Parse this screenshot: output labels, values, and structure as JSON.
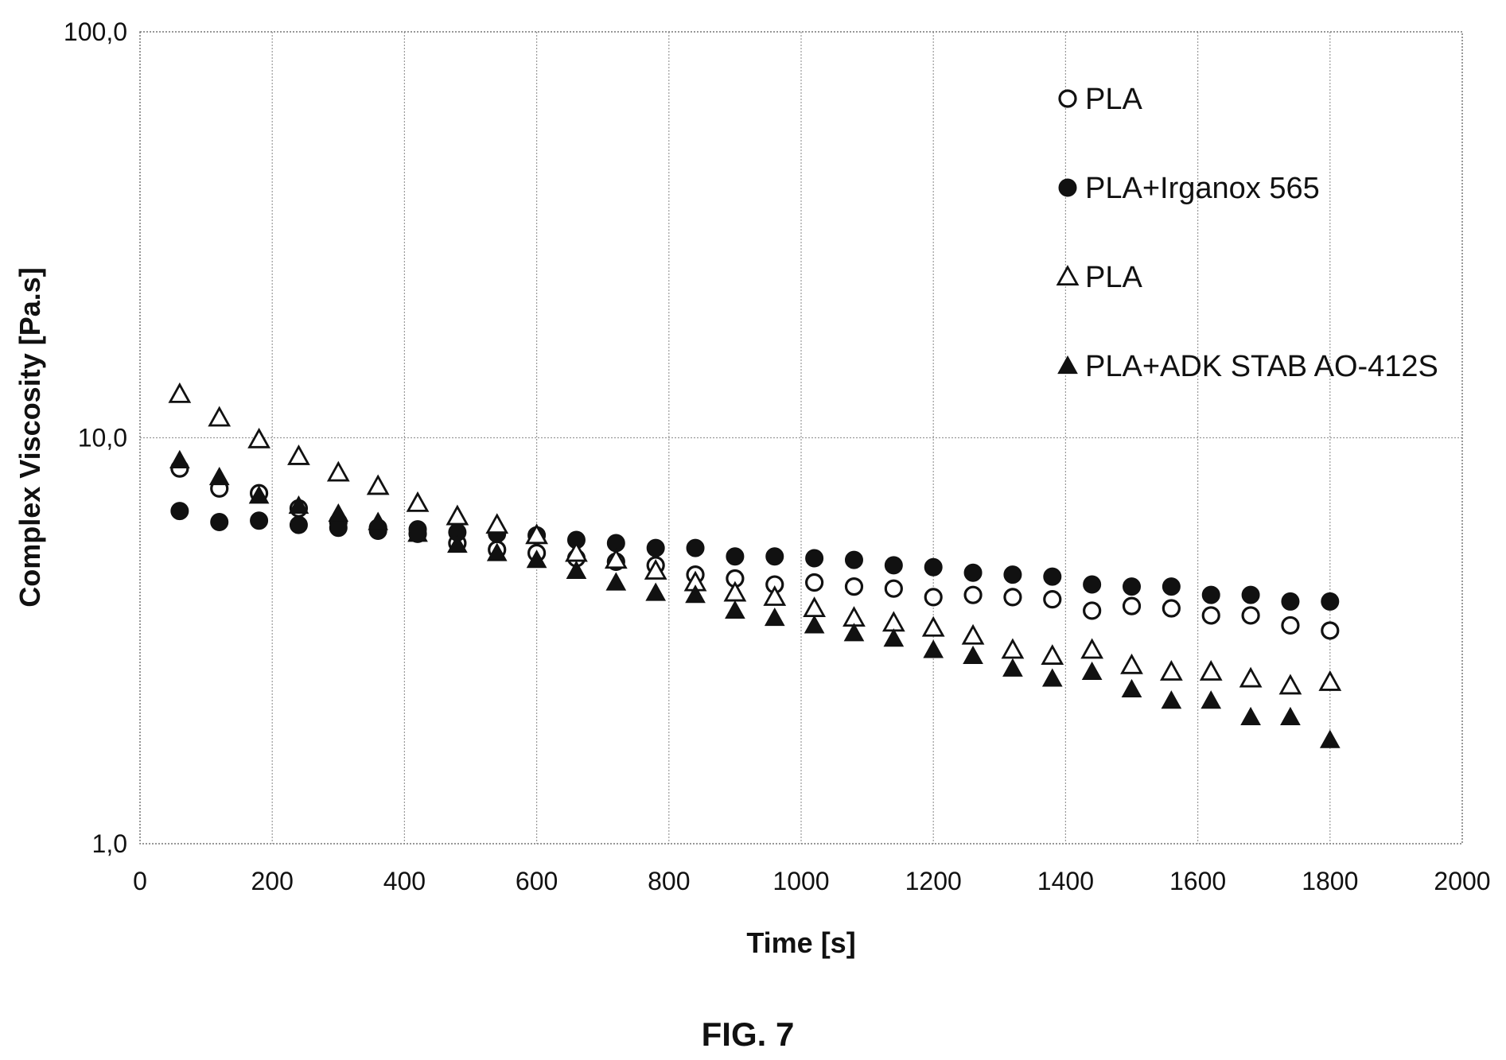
{
  "figure_label": "FIG. 7",
  "chart_data": {
    "type": "scatter",
    "xlabel": "Time [s]",
    "ylabel": "Complex Viscosity [Pa.s]",
    "xlim": [
      0,
      2000
    ],
    "ylim": [
      1.0,
      100.0
    ],
    "y_scale": "log",
    "x_ticks": [
      0,
      200,
      400,
      600,
      800,
      1000,
      1200,
      1400,
      1600,
      1800,
      2000
    ],
    "x_tick_labels": [
      "0",
      "200",
      "400",
      "600",
      "800",
      "1000",
      "1200",
      "1400",
      "1600",
      "1800",
      "2000"
    ],
    "y_ticks": [
      1,
      10,
      100
    ],
    "y_tick_labels": [
      "1,0",
      "10,0",
      "100,0"
    ],
    "grid": true,
    "legend_position": "top-right",
    "x": [
      60,
      120,
      180,
      240,
      300,
      360,
      420,
      480,
      540,
      600,
      660,
      720,
      780,
      840,
      900,
      960,
      1020,
      1080,
      1140,
      1200,
      1260,
      1320,
      1380,
      1440,
      1500,
      1560,
      1620,
      1680,
      1740,
      1800
    ],
    "series": [
      {
        "name": "PLA",
        "marker": "open-circle",
        "values": [
          8.4,
          7.5,
          7.3,
          6.7,
          6.2,
          6.0,
          5.8,
          5.5,
          5.3,
          5.2,
          5.05,
          4.95,
          4.85,
          4.6,
          4.5,
          4.35,
          4.4,
          4.3,
          4.25,
          4.05,
          4.1,
          4.05,
          4.0,
          3.75,
          3.85,
          3.8,
          3.65,
          3.65,
          3.45,
          3.35
        ]
      },
      {
        "name": "PLA+Irganox 565",
        "marker": "filled-circle",
        "values": [
          6.6,
          6.2,
          6.25,
          6.1,
          6.0,
          5.9,
          5.95,
          5.85,
          5.8,
          5.75,
          5.6,
          5.5,
          5.35,
          5.35,
          5.1,
          5.1,
          5.05,
          5.0,
          4.85,
          4.8,
          4.65,
          4.6,
          4.55,
          4.35,
          4.3,
          4.3,
          4.1,
          4.1,
          3.95,
          3.95
        ]
      },
      {
        "name": "PLA",
        "marker": "open-triangle",
        "values": [
          12.8,
          11.2,
          9.9,
          9.0,
          8.2,
          7.6,
          6.9,
          6.4,
          6.1,
          5.75,
          5.2,
          5.0,
          4.7,
          4.4,
          4.15,
          4.05,
          3.8,
          3.6,
          3.5,
          3.4,
          3.25,
          3.0,
          2.9,
          3.0,
          2.75,
          2.65,
          2.65,
          2.55,
          2.45,
          2.5
        ]
      },
      {
        "name": "PLA+ADK STAB AO-412S",
        "marker": "filled-triangle",
        "values": [
          8.8,
          8.0,
          7.2,
          6.8,
          6.5,
          6.2,
          5.8,
          5.45,
          5.2,
          5.0,
          4.7,
          4.4,
          4.15,
          4.1,
          3.75,
          3.6,
          3.45,
          3.3,
          3.2,
          3.0,
          2.9,
          2.7,
          2.55,
          2.65,
          2.4,
          2.25,
          2.25,
          2.05,
          2.05,
          1.8
        ]
      }
    ]
  }
}
